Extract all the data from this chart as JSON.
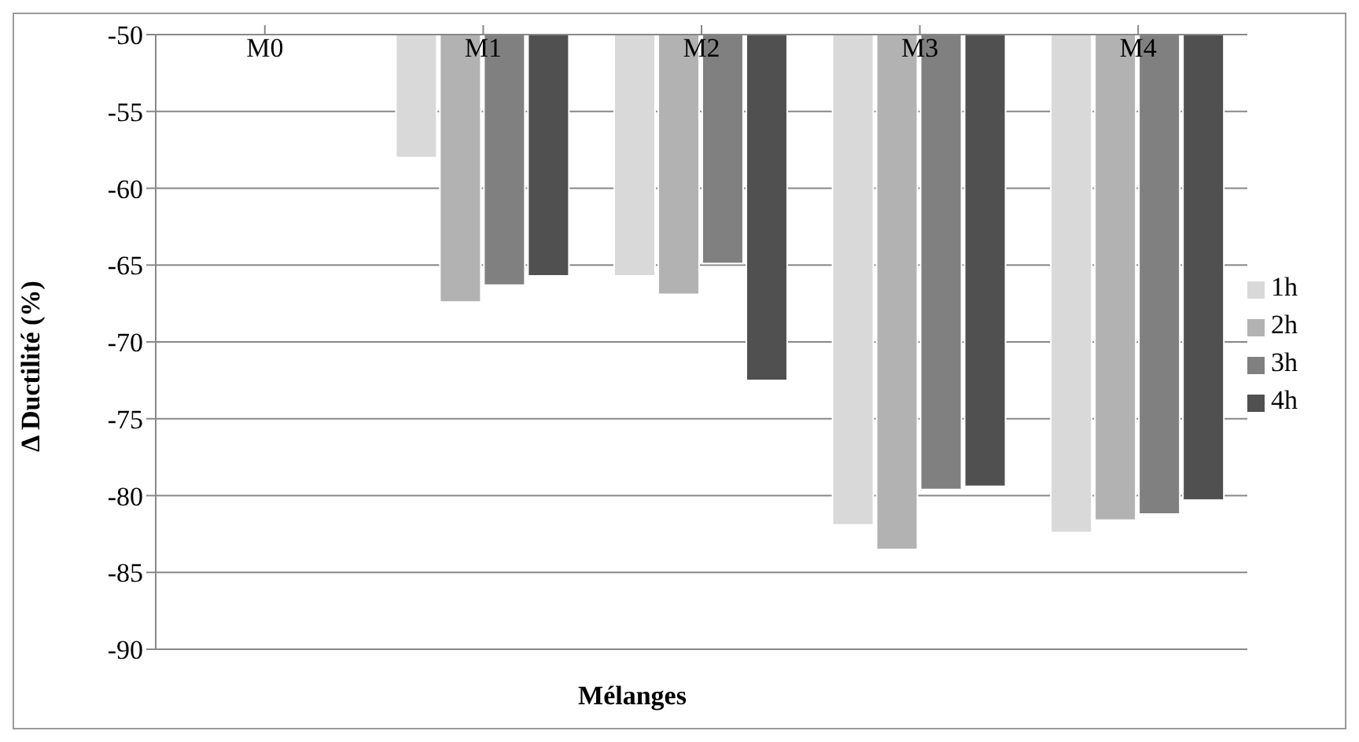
{
  "chart_data": {
    "type": "bar",
    "xlabel": "Mélanges",
    "ylabel": "Δ Ductilité (%)",
    "categories": [
      "M0",
      "M1",
      "M2",
      "M3",
      "M4"
    ],
    "series": [
      {
        "name": "1h",
        "color": "#d9d9d9",
        "values": [
          null,
          -58,
          -65.7,
          -81.9,
          -82.4
        ]
      },
      {
        "name": "2h",
        "color": "#b2b2b2",
        "values": [
          null,
          -67.4,
          -66.9,
          -83.5,
          -81.6
        ]
      },
      {
        "name": "3h",
        "color": "#808080",
        "values": [
          null,
          -66.3,
          -64.9,
          -79.6,
          -81.2
        ]
      },
      {
        "name": "4h",
        "color": "#505050",
        "values": [
          null,
          -65.7,
          -72.5,
          -79.4,
          -80.3
        ]
      }
    ],
    "ylim": [
      -90,
      -50
    ],
    "yticks": [
      -90,
      -85,
      -80,
      -75,
      -70,
      -65,
      -60,
      -55,
      -50
    ],
    "grid": "y",
    "legend": "right"
  }
}
